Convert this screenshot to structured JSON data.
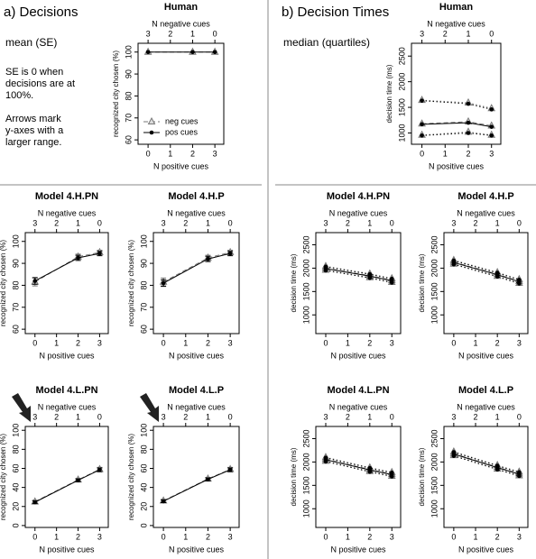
{
  "left_heading": "a) Decisions",
  "left_stat": "mean (SE)",
  "left_note1": [
    "SE is 0 when",
    "decisions are at",
    "100%."
  ],
  "left_note2": [
    "Arrows mark",
    "y-axes with a",
    "larger range."
  ],
  "right_heading": "b) Decision Times",
  "right_stat": "median (quartiles)",
  "chart_data": [
    {
      "type": "line",
      "title": "Human",
      "xlabel": "N positive cues",
      "x2label": "N negative cues",
      "ylabel": "recognized city chosen (%)",
      "x": [
        0,
        2,
        3
      ],
      "xlim": [
        -0.45,
        3.4
      ],
      "xticks": [
        0,
        1,
        2,
        3
      ],
      "x2ticks": [
        {
          "value": 0,
          "label": "3"
        },
        {
          "value": 1,
          "label": "2"
        },
        {
          "value": 2,
          "label": "1"
        },
        {
          "value": 3,
          "label": "0"
        }
      ],
      "ylim": [
        58,
        104
      ],
      "yticks": [
        60,
        70,
        80,
        90,
        100
      ],
      "legend": "bottom left",
      "series": [
        {
          "name": "neg cues",
          "color": "#777777",
          "marker": "triangle",
          "dash": true,
          "values": [
            100,
            100,
            100
          ]
        },
        {
          "name": "pos cues",
          "color": "#000000",
          "marker": "dot",
          "dash": false,
          "values": [
            100,
            100,
            100
          ]
        }
      ]
    },
    {
      "type": "line",
      "title": "Model 4.H.PN",
      "xlabel": "N positive cues",
      "x2label": "N negative cues",
      "ylabel": "recognized city chosen (%)",
      "x": [
        0,
        2,
        3
      ],
      "xlim": [
        -0.45,
        3.4
      ],
      "xticks": [
        0,
        1,
        2,
        3
      ],
      "x2ticks": [
        {
          "value": 0,
          "label": "3"
        },
        {
          "value": 1,
          "label": "2"
        },
        {
          "value": 2,
          "label": "1"
        },
        {
          "value": 3,
          "label": "0"
        }
      ],
      "ylim": [
        58,
        104
      ],
      "yticks": [
        60,
        70,
        80,
        90,
        100
      ],
      "series": [
        {
          "color": "#777777",
          "marker": "triangle",
          "dash": true,
          "values": [
            81.5,
            93,
            95
          ],
          "se": [
            1.8,
            1.2,
            1
          ]
        },
        {
          "color": "#000000",
          "marker": "dot",
          "dash": false,
          "values": [
            82,
            92.5,
            94.5
          ],
          "se": [
            1.5,
            1.2,
            1
          ]
        }
      ]
    },
    {
      "type": "line",
      "title": "Model 4.H.P",
      "xlabel": "N positive cues",
      "x2label": "N negative cues",
      "ylabel": "recognized city chosen (%)",
      "x": [
        0,
        2,
        3
      ],
      "xlim": [
        -0.45,
        3.4
      ],
      "xticks": [
        0,
        1,
        2,
        3
      ],
      "x2ticks": [
        {
          "value": 0,
          "label": "3"
        },
        {
          "value": 1,
          "label": "2"
        },
        {
          "value": 2,
          "label": "1"
        },
        {
          "value": 3,
          "label": "0"
        }
      ],
      "ylim": [
        58,
        104
      ],
      "yticks": [
        60,
        70,
        80,
        90,
        100
      ],
      "series": [
        {
          "color": "#777777",
          "marker": "triangle",
          "dash": true,
          "values": [
            81.5,
            92.5,
            95
          ],
          "se": [
            1.8,
            1.2,
            1
          ]
        },
        {
          "color": "#000000",
          "marker": "dot",
          "dash": false,
          "values": [
            81,
            92,
            94.5
          ],
          "se": [
            1.5,
            1.2,
            1
          ]
        }
      ]
    },
    {
      "type": "line",
      "title": "Model 4.L.PN",
      "xlabel": "N positive cues",
      "x2label": "N negative cues",
      "ylabel": "recognized city chosen (%)",
      "x": [
        0,
        2,
        3
      ],
      "xlim": [
        -0.45,
        3.4
      ],
      "xticks": [
        0,
        1,
        2,
        3
      ],
      "x2ticks": [
        {
          "value": 0,
          "label": "3"
        },
        {
          "value": 1,
          "label": "2"
        },
        {
          "value": 2,
          "label": "1"
        },
        {
          "value": 3,
          "label": "0"
        }
      ],
      "ylim": [
        -2,
        104
      ],
      "yticks": [
        0,
        20,
        40,
        60,
        80,
        100
      ],
      "series": [
        {
          "color": "#777777",
          "marker": "triangle",
          "dash": true,
          "values": [
            25,
            48,
            59
          ],
          "se": [
            1.5,
            1.5,
            2
          ]
        },
        {
          "color": "#000000",
          "marker": "dot",
          "dash": false,
          "values": [
            24.5,
            47.5,
            58.5
          ],
          "se": [
            1.5,
            1.5,
            2
          ]
        }
      ]
    },
    {
      "type": "line",
      "title": "Model 4.L.P",
      "xlabel": "N positive cues",
      "x2label": "N negative cues",
      "ylabel": "recognized city chosen (%)",
      "x": [
        0,
        2,
        3
      ],
      "xlim": [
        -0.45,
        3.4
      ],
      "xticks": [
        0,
        1,
        2,
        3
      ],
      "x2ticks": [
        {
          "value": 0,
          "label": "3"
        },
        {
          "value": 1,
          "label": "2"
        },
        {
          "value": 2,
          "label": "1"
        },
        {
          "value": 3,
          "label": "0"
        }
      ],
      "ylim": [
        -2,
        104
      ],
      "yticks": [
        0,
        20,
        40,
        60,
        80,
        100
      ],
      "series": [
        {
          "color": "#777777",
          "marker": "triangle",
          "dash": true,
          "values": [
            26,
            49,
            59
          ],
          "se": [
            1.5,
            1.5,
            2
          ]
        },
        {
          "color": "#000000",
          "marker": "dot",
          "dash": false,
          "values": [
            25.5,
            48.5,
            58.5
          ],
          "se": [
            1.5,
            1.5,
            2
          ]
        }
      ]
    },
    {
      "type": "line",
      "title": "Human",
      "xlabel": "N positive cues",
      "x2label": "N negative cues",
      "ylabel": "decision time (ms)",
      "x": [
        0,
        2,
        3
      ],
      "xlim": [
        -0.45,
        3.4
      ],
      "xticks": [
        0,
        1,
        2,
        3
      ],
      "x2ticks": [
        {
          "value": 0,
          "label": "3"
        },
        {
          "value": 1,
          "label": "2"
        },
        {
          "value": 2,
          "label": "1"
        },
        {
          "value": 3,
          "label": "0"
        }
      ],
      "ylim": [
        780,
        2750
      ],
      "yticks": [
        1000,
        1500,
        2000,
        2500
      ],
      "series": [
        {
          "color": "#777777",
          "marker": "triangle",
          "dash": true,
          "values": [
            1180,
            1220,
            1140
          ],
          "q1": [
            960,
            1020,
            960
          ],
          "q3": [
            1640,
            1590,
            1480
          ]
        },
        {
          "color": "#000000",
          "marker": "dot",
          "dash": false,
          "values": [
            1170,
            1200,
            1120
          ],
          "q1": [
            950,
            1000,
            950
          ],
          "q3": [
            1630,
            1570,
            1460
          ]
        }
      ]
    },
    {
      "type": "line",
      "title": "Model 4.H.PN",
      "xlabel": "N positive cues",
      "x2label": "N negative cues",
      "ylabel": "decision time (ms)",
      "x": [
        0,
        2,
        3
      ],
      "xlim": [
        -0.45,
        3.4
      ],
      "xticks": [
        0,
        1,
        2,
        3
      ],
      "x2ticks": [
        {
          "value": 0,
          "label": "3"
        },
        {
          "value": 1,
          "label": "2"
        },
        {
          "value": 2,
          "label": "1"
        },
        {
          "value": 3,
          "label": "0"
        }
      ],
      "ylim": [
        600,
        2760
      ],
      "yticks": [
        1000,
        1500,
        2000,
        2500
      ],
      "series": [
        {
          "color": "#777777",
          "marker": "triangle",
          "dash": true,
          "values": [
            2000,
            1840,
            1740
          ],
          "q1": [
            1960,
            1800,
            1700
          ],
          "q3": [
            2040,
            1880,
            1780
          ]
        },
        {
          "color": "#000000",
          "marker": "dot",
          "dash": false,
          "values": [
            1990,
            1830,
            1730
          ],
          "q1": [
            1950,
            1790,
            1690
          ],
          "q3": [
            2030,
            1870,
            1770
          ]
        }
      ]
    },
    {
      "type": "line",
      "title": "Model 4.H.P",
      "xlabel": "N positive cues",
      "x2label": "N negative cues",
      "ylabel": "decision time (ms)",
      "x": [
        0,
        2,
        3
      ],
      "xlim": [
        -0.45,
        3.4
      ],
      "xticks": [
        0,
        1,
        2,
        3
      ],
      "x2ticks": [
        {
          "value": 0,
          "label": "3"
        },
        {
          "value": 1,
          "label": "2"
        },
        {
          "value": 2,
          "label": "1"
        },
        {
          "value": 3,
          "label": "0"
        }
      ],
      "ylim": [
        600,
        2760
      ],
      "yticks": [
        1000,
        1500,
        2000,
        2500
      ],
      "series": [
        {
          "color": "#777777",
          "marker": "triangle",
          "dash": true,
          "values": [
            2130,
            1870,
            1720
          ],
          "q1": [
            2090,
            1830,
            1680
          ],
          "q3": [
            2170,
            1910,
            1760
          ]
        },
        {
          "color": "#000000",
          "marker": "dot",
          "dash": false,
          "values": [
            2120,
            1860,
            1710
          ],
          "q1": [
            2080,
            1820,
            1670
          ],
          "q3": [
            2160,
            1900,
            1750
          ]
        }
      ]
    },
    {
      "type": "line",
      "title": "Model 4.L.PN",
      "xlabel": "N positive cues",
      "x2label": "N negative cues",
      "ylabel": "decision time (ms)",
      "x": [
        0,
        2,
        3
      ],
      "xlim": [
        -0.45,
        3.4
      ],
      "xticks": [
        0,
        1,
        2,
        3
      ],
      "x2ticks": [
        {
          "value": 0,
          "label": "3"
        },
        {
          "value": 1,
          "label": "2"
        },
        {
          "value": 2,
          "label": "1"
        },
        {
          "value": 3,
          "label": "0"
        }
      ],
      "ylim": [
        600,
        2760
      ],
      "yticks": [
        1000,
        1500,
        2000,
        2500
      ],
      "series": [
        {
          "color": "#777777",
          "marker": "triangle",
          "dash": true,
          "values": [
            2060,
            1840,
            1740
          ],
          "q1": [
            2020,
            1800,
            1700
          ],
          "q3": [
            2100,
            1880,
            1780
          ]
        },
        {
          "color": "#000000",
          "marker": "dot",
          "dash": false,
          "values": [
            2050,
            1830,
            1730
          ],
          "q1": [
            2010,
            1790,
            1690
          ],
          "q3": [
            2090,
            1870,
            1770
          ]
        }
      ]
    },
    {
      "type": "line",
      "title": "Model 4.L.P",
      "xlabel": "N positive cues",
      "x2label": "N negative cues",
      "ylabel": "decision time (ms)",
      "x": [
        0,
        2,
        3
      ],
      "xlim": [
        -0.45,
        3.4
      ],
      "xticks": [
        0,
        1,
        2,
        3
      ],
      "x2ticks": [
        {
          "value": 0,
          "label": "3"
        },
        {
          "value": 1,
          "label": "2"
        },
        {
          "value": 2,
          "label": "1"
        },
        {
          "value": 3,
          "label": "0"
        }
      ],
      "ylim": [
        600,
        2760
      ],
      "yticks": [
        1000,
        1500,
        2000,
        2500
      ],
      "series": [
        {
          "color": "#777777",
          "marker": "triangle",
          "dash": true,
          "values": [
            2180,
            1890,
            1750
          ],
          "q1": [
            2140,
            1850,
            1710
          ],
          "q3": [
            2220,
            1930,
            1790
          ]
        },
        {
          "color": "#000000",
          "marker": "dot",
          "dash": false,
          "values": [
            2170,
            1880,
            1740
          ],
          "q1": [
            2130,
            1840,
            1700
          ],
          "q3": [
            2210,
            1920,
            1780
          ]
        }
      ]
    }
  ]
}
